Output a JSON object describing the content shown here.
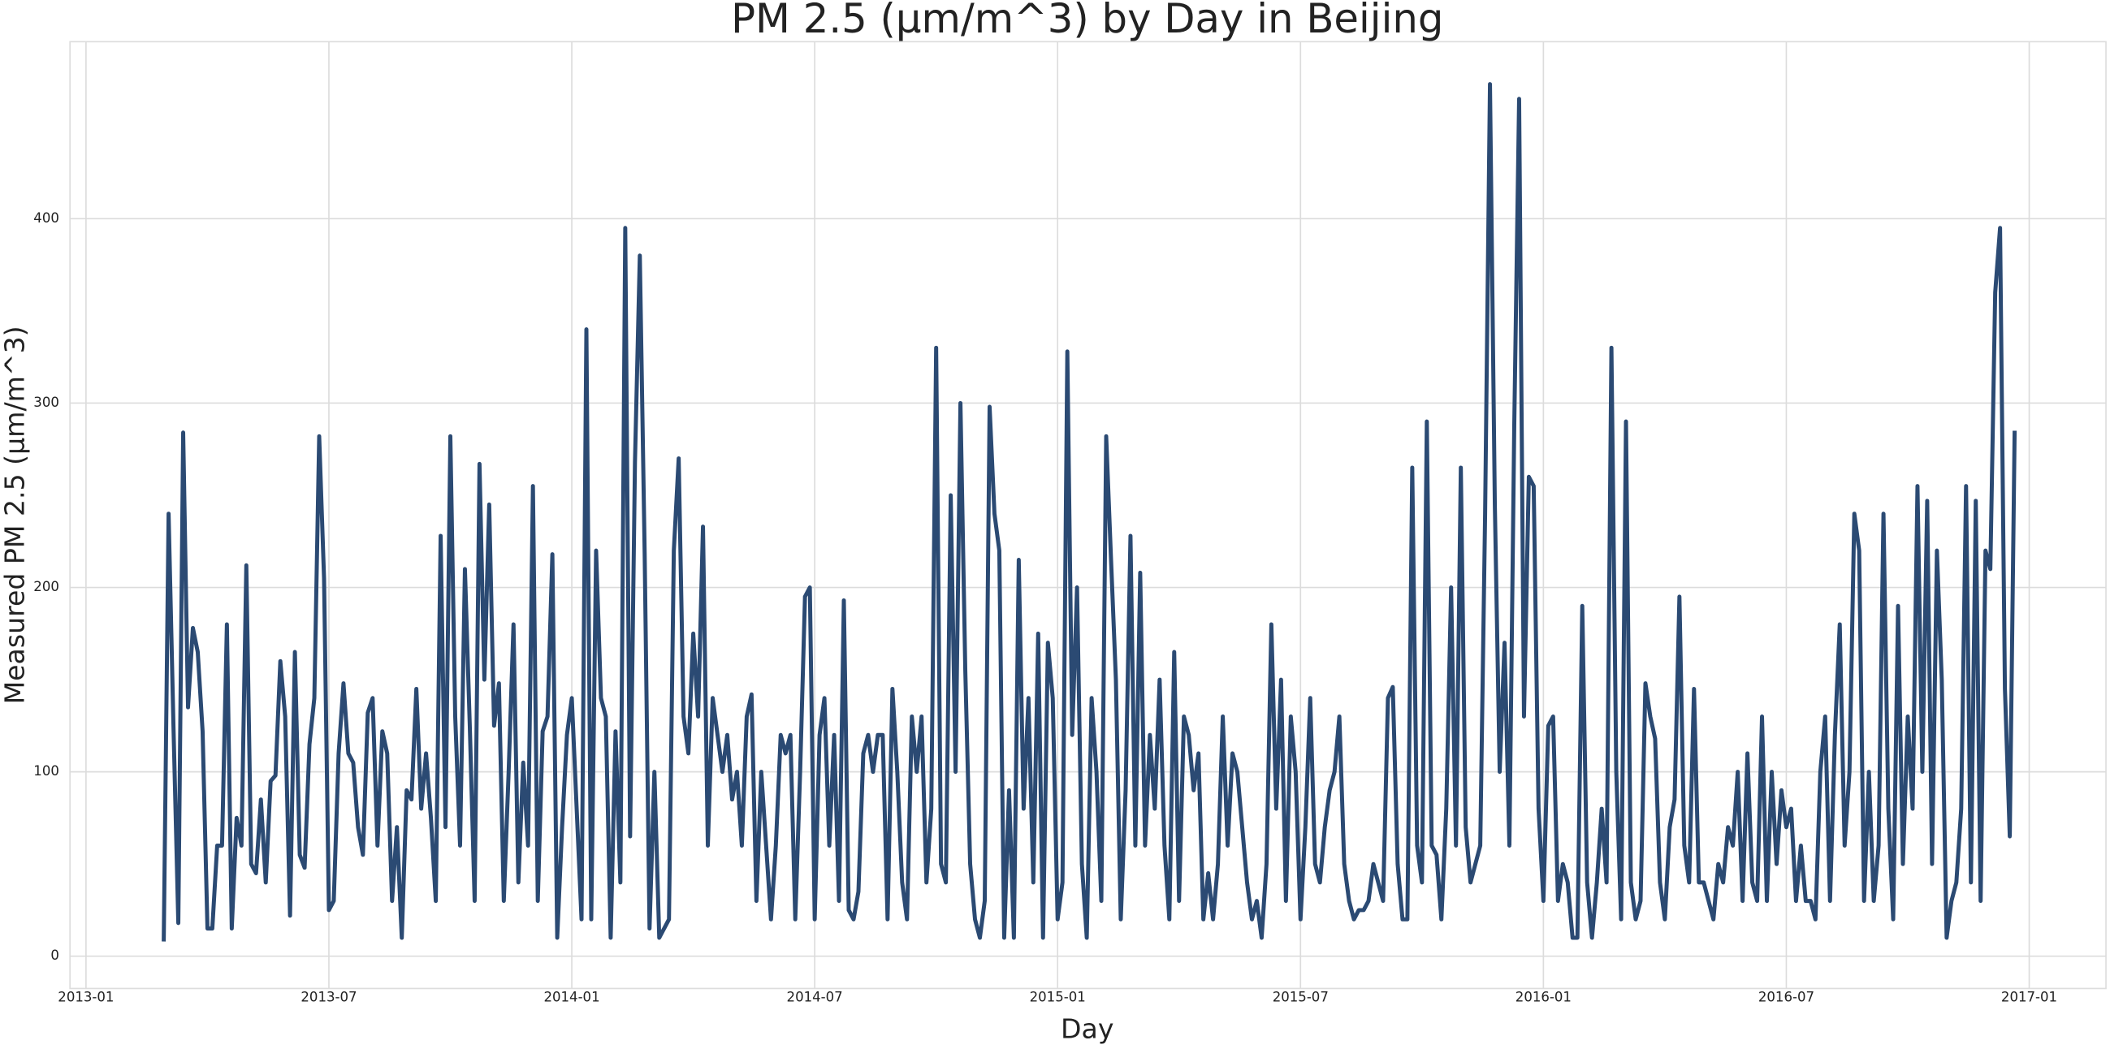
{
  "chart_data": {
    "type": "line",
    "title": "PM 2.5 (μm/m^3) by Day in Beijing",
    "x_label": "Day",
    "y_label": "Measured PM 2.5 (μm/m^3)",
    "color": "#2b4a73",
    "grid": true,
    "xlim": [
      2012.967,
      2017.158
    ],
    "ylim": [
      -17.5,
      496
    ],
    "xticks": [
      {
        "value": 2013.0,
        "label": "2013-01"
      },
      {
        "value": 2013.5,
        "label": "2013-07"
      },
      {
        "value": 2014.0,
        "label": "2014-01"
      },
      {
        "value": 2014.5,
        "label": "2014-07"
      },
      {
        "value": 2015.0,
        "label": "2015-01"
      },
      {
        "value": 2015.5,
        "label": "2015-07"
      },
      {
        "value": 2016.0,
        "label": "2016-01"
      },
      {
        "value": 2016.5,
        "label": "2016-07"
      },
      {
        "value": 2017.0,
        "label": "2017-01"
      }
    ],
    "yticks": [
      0,
      100,
      200,
      300,
      400
    ],
    "x": [
      2013.16,
      2013.17,
      2013.18,
      2013.19,
      2013.2,
      2013.21,
      2013.22,
      2013.23,
      2013.24,
      2013.25,
      2013.26,
      2013.27,
      2013.28,
      2013.29,
      2013.3,
      2013.31,
      2013.32,
      2013.33,
      2013.34,
      2013.35,
      2013.36,
      2013.37,
      2013.38,
      2013.39,
      2013.4,
      2013.41,
      2013.42,
      2013.43,
      2013.44,
      2013.45,
      2013.46,
      2013.47,
      2013.48,
      2013.49,
      2013.5,
      2013.51,
      2013.52,
      2013.53,
      2013.54,
      2013.55,
      2013.56,
      2013.57,
      2013.58,
      2013.59,
      2013.6,
      2013.61,
      2013.62,
      2013.63,
      2013.64,
      2013.65,
      2013.66,
      2013.67,
      2013.68,
      2013.69,
      2013.7,
      2013.71,
      2013.72,
      2013.73,
      2013.74,
      2013.75,
      2013.76,
      2013.77,
      2013.78,
      2013.79,
      2013.8,
      2013.81,
      2013.82,
      2013.83,
      2013.84,
      2013.85,
      2013.86,
      2013.87,
      2013.88,
      2013.89,
      2013.9,
      2013.91,
      2013.92,
      2013.93,
      2013.94,
      2013.95,
      2013.96,
      2013.97,
      2013.98,
      2013.99,
      2014.0,
      2014.01,
      2014.02,
      2014.03,
      2014.04,
      2014.05,
      2014.06,
      2014.07,
      2014.08,
      2014.09,
      2014.1,
      2014.11,
      2014.12,
      2014.13,
      2014.14,
      2014.15,
      2014.16,
      2014.17,
      2014.18,
      2014.19,
      2014.2,
      2014.21,
      2014.22,
      2014.23,
      2014.24,
      2014.25,
      2014.26,
      2014.27,
      2014.28,
      2014.29,
      2014.3,
      2014.31,
      2014.32,
      2014.33,
      2014.34,
      2014.35,
      2014.36,
      2014.37,
      2014.38,
      2014.39,
      2014.4,
      2014.41,
      2014.42,
      2014.43,
      2014.44,
      2014.45,
      2014.46,
      2014.47,
      2014.48,
      2014.49,
      2014.5,
      2014.51,
      2014.52,
      2014.53,
      2014.54,
      2014.55,
      2014.56,
      2014.57,
      2014.58,
      2014.59,
      2014.6,
      2014.61,
      2014.62,
      2014.63,
      2014.64,
      2014.65,
      2014.66,
      2014.67,
      2014.68,
      2014.69,
      2014.7,
      2014.71,
      2014.72,
      2014.73,
      2014.74,
      2014.75,
      2014.76,
      2014.77,
      2014.78,
      2014.79,
      2014.8,
      2014.81,
      2014.82,
      2014.83,
      2014.84,
      2014.85,
      2014.86,
      2014.87,
      2014.88,
      2014.89,
      2014.9,
      2014.91,
      2014.92,
      2014.93,
      2014.94,
      2014.95,
      2014.96,
      2014.97,
      2014.98,
      2014.99,
      2015.0,
      2015.01,
      2015.02,
      2015.03,
      2015.04,
      2015.05,
      2015.06,
      2015.07,
      2015.08,
      2015.09,
      2015.1,
      2015.11,
      2015.12,
      2015.13,
      2015.14,
      2015.15,
      2015.16,
      2015.17,
      2015.18,
      2015.19,
      2015.2,
      2015.21,
      2015.22,
      2015.23,
      2015.24,
      2015.25,
      2015.26,
      2015.27,
      2015.28,
      2015.29,
      2015.3,
      2015.31,
      2015.32,
      2015.33,
      2015.34,
      2015.35,
      2015.36,
      2015.37,
      2015.38,
      2015.39,
      2015.4,
      2015.41,
      2015.42,
      2015.43,
      2015.44,
      2015.45,
      2015.46,
      2015.47,
      2015.48,
      2015.49,
      2015.5,
      2015.51,
      2015.52,
      2015.53,
      2015.54,
      2015.55,
      2015.56,
      2015.57,
      2015.58,
      2015.59,
      2015.6,
      2015.61,
      2015.62,
      2015.63,
      2015.64,
      2015.65,
      2015.66,
      2015.67,
      2015.68,
      2015.69,
      2015.7,
      2015.71,
      2015.72,
      2015.73,
      2015.74,
      2015.75,
      2015.76,
      2015.77,
      2015.78,
      2015.79,
      2015.8,
      2015.81,
      2015.82,
      2015.83,
      2015.84,
      2015.85,
      2015.86,
      2015.87,
      2015.88,
      2015.89,
      2015.9,
      2015.91,
      2015.92,
      2015.93,
      2015.94,
      2015.95,
      2015.96,
      2015.97,
      2015.98,
      2015.99,
      2016.0,
      2016.01,
      2016.02,
      2016.03,
      2016.04,
      2016.05,
      2016.06,
      2016.07,
      2016.08,
      2016.09,
      2016.1,
      2016.11,
      2016.12,
      2016.13,
      2016.14,
      2016.15,
      2016.16,
      2016.17,
      2016.18,
      2016.19,
      2016.2,
      2016.21,
      2016.22,
      2016.23,
      2016.24,
      2016.25,
      2016.26,
      2016.27,
      2016.28,
      2016.29,
      2016.3,
      2016.31,
      2016.32,
      2016.33,
      2016.34,
      2016.35,
      2016.36,
      2016.37,
      2016.38,
      2016.39,
      2016.4,
      2016.41,
      2016.42,
      2016.43,
      2016.44,
      2016.45,
      2016.46,
      2016.47,
      2016.48,
      2016.49,
      2016.5,
      2016.51,
      2016.52,
      2016.53,
      2016.54,
      2016.55,
      2016.56,
      2016.57,
      2016.58,
      2016.59,
      2016.6,
      2016.61,
      2016.62,
      2016.63,
      2016.64,
      2016.65,
      2016.66,
      2016.67,
      2016.68,
      2016.69,
      2016.7,
      2016.71,
      2016.72,
      2016.73,
      2016.74,
      2016.75,
      2016.76,
      2016.77,
      2016.78,
      2016.79,
      2016.8,
      2016.81,
      2016.82,
      2016.83,
      2016.84,
      2016.85,
      2016.86,
      2016.87,
      2016.88,
      2016.89,
      2016.9,
      2016.91,
      2016.92,
      2016.93,
      2016.94,
      2016.95,
      2016.96,
      2016.97
    ],
    "values": [
      8,
      240,
      125,
      18,
      284,
      135,
      178,
      165,
      122,
      15,
      15,
      60,
      60,
      180,
      15,
      75,
      60,
      212,
      50,
      45,
      85,
      40,
      95,
      98,
      160,
      130,
      22,
      165,
      55,
      48,
      115,
      140,
      282,
      205,
      25,
      30,
      110,
      148,
      110,
      105,
      70,
      55,
      132,
      140,
      60,
      122,
      110,
      30,
      70,
      10,
      90,
      85,
      145,
      80,
      110,
      75,
      30,
      228,
      70,
      282,
      130,
      60,
      210,
      125,
      30,
      267,
      150,
      245,
      125,
      148,
      30,
      100,
      180,
      40,
      105,
      60,
      255,
      30,
      122,
      130,
      218,
      10,
      70,
      120,
      140,
      80,
      20,
      340,
      20,
      220,
      140,
      130,
      10,
      122,
      40,
      395,
      65,
      268,
      380,
      218,
      15,
      100,
      10,
      15,
      20,
      220,
      270,
      130,
      110,
      175,
      130,
      233,
      60,
      140,
      120,
      100,
      120,
      85,
      100,
      60,
      130,
      142,
      30,
      100,
      60,
      20,
      60,
      120,
      110,
      120,
      20,
      100,
      195,
      200,
      20,
      120,
      140,
      60,
      120,
      30,
      193,
      25,
      20,
      35,
      110,
      120,
      100,
      120,
      120,
      20,
      145,
      100,
      40,
      20,
      130,
      100,
      130,
      40,
      80,
      330,
      50,
      40,
      250,
      100,
      300,
      155,
      50,
      20,
      10,
      30,
      298,
      240,
      220,
      10,
      90,
      10,
      215,
      80,
      140,
      40,
      175,
      10,
      170,
      140,
      20,
      40,
      328,
      120,
      200,
      50,
      10,
      140,
      100,
      30,
      282,
      215,
      150,
      20,
      90,
      228,
      60,
      208,
      60,
      120,
      80,
      150,
      60,
      20,
      165,
      30,
      130,
      120,
      90,
      110,
      20,
      45,
      20,
      50,
      130,
      60,
      110,
      100,
      70,
      40,
      20,
      30,
      10,
      50,
      180,
      80,
      150,
      30,
      130,
      100,
      20,
      70,
      140,
      50,
      40,
      70,
      90,
      100,
      130,
      50,
      30,
      20,
      25,
      25,
      30,
      50,
      40,
      30,
      140,
      146,
      50,
      20,
      20,
      265,
      60,
      40,
      290,
      60,
      55,
      20,
      80,
      200,
      60,
      265,
      70,
      40,
      50,
      60,
      240,
      473,
      245,
      100,
      170,
      60,
      288,
      465,
      130,
      260,
      255,
      80,
      30,
      125,
      130,
      30,
      50,
      40,
      10,
      10,
      190,
      40,
      10,
      40,
      80,
      40,
      330,
      100,
      20,
      290,
      40,
      20,
      30,
      148,
      130,
      118,
      40,
      20,
      70,
      85,
      195,
      60,
      40,
      145,
      40,
      40,
      30,
      20,
      50,
      40,
      70,
      60,
      100,
      30,
      110,
      40,
      30,
      130,
      30,
      100,
      50,
      90,
      70,
      80,
      30,
      60,
      30,
      30,
      20,
      100,
      130,
      30,
      120,
      180,
      60,
      100,
      240,
      220,
      30,
      100,
      30,
      60,
      240,
      80,
      20,
      190,
      50,
      130,
      80,
      255,
      100,
      247,
      50,
      220,
      150,
      10,
      30,
      40,
      80,
      255,
      40,
      247,
      30,
      220,
      210,
      360,
      395,
      145,
      65,
      285
    ]
  }
}
